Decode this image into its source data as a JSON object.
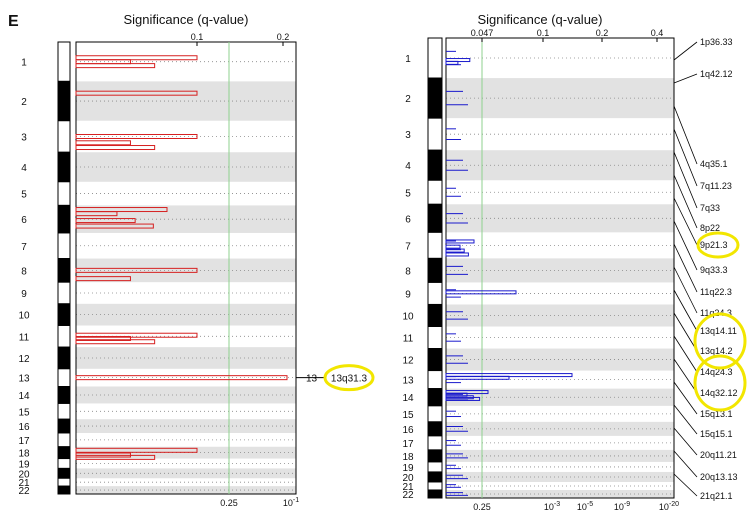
{
  "panel_label": "E",
  "chart_data": [
    {
      "type": "bar",
      "title": "Significance (q-value)",
      "orientation": "horizontal",
      "x_scale": "log q-value (reversed)",
      "top_ticks": [
        "0.1",
        "0.2"
      ],
      "bottom_ticks": [
        "0.25",
        "10",
        "-1"
      ],
      "threshold_q": 0.25,
      "chromosomes": [
        "1",
        "2",
        "3",
        "4",
        "5",
        "6",
        "7",
        "8",
        "9",
        "10",
        "11",
        "12",
        "13",
        "14",
        "15",
        "16",
        "17",
        "18",
        "19",
        "20",
        "21",
        "22"
      ],
      "chromosome_labels_right": [
        "13"
      ],
      "callouts": [
        "13q31.3"
      ],
      "bar_color": "#d62020",
      "peaks": [
        {
          "chromosome": "1",
          "q_value": 0.1
        },
        {
          "chromosome": "2",
          "q_value": 0.1
        },
        {
          "chromosome": "3",
          "q_value": 0.1
        },
        {
          "chromosome": "6",
          "q_value": 0.15
        },
        {
          "chromosome": "8",
          "q_value": 0.1
        },
        {
          "chromosome": "11",
          "q_value": 0.1
        },
        {
          "chromosome": "13",
          "q_value": 0.06
        },
        {
          "chromosome": "18",
          "q_value": 0.1
        }
      ]
    },
    {
      "type": "bar",
      "title": "Significance (q-value)",
      "orientation": "horizontal",
      "x_scale": "log q-value (reversed)",
      "top_ticks": [
        "0.047",
        "0.1",
        "0.2",
        "0.4"
      ],
      "bottom_ticks": [
        "0.25",
        "10",
        "-3",
        "10",
        "-5",
        "10",
        "-9",
        "10",
        "-20"
      ],
      "threshold_q": 0.25,
      "chromosomes": [
        "1",
        "2",
        "3",
        "4",
        "5",
        "6",
        "7",
        "8",
        "9",
        "10",
        "11",
        "12",
        "13",
        "14",
        "15",
        "16",
        "17",
        "18",
        "19",
        "20",
        "21",
        "22"
      ],
      "bar_color": "#1a1acc",
      "cytoband_labels": [
        "1p36.33",
        "1q42.12",
        "4q35.1",
        "7q11.23",
        "7q33",
        "8p22",
        "9p21.3",
        "9q33.3",
        "11q22.3",
        "11q24.3",
        "13q14.11",
        "13q14.2",
        "14q24.3",
        "14q32.12",
        "15q13.1",
        "15q15.1",
        "20q11.21",
        "20q13.13",
        "21q21.1"
      ],
      "highlighted": [
        "9p21.3",
        "13q14.11",
        "13q14.2",
        "14q24.3",
        "14q32.12"
      ],
      "peaks": [
        {
          "chromosome": "1",
          "q_value": 0.02
        },
        {
          "chromosome": "7",
          "q_value": 0.01
        },
        {
          "chromosome": "9",
          "q_value": 1e-05
        },
        {
          "chromosome": "13",
          "q_value": 1e-09
        },
        {
          "chromosome": "14",
          "q_value": 0.001
        }
      ]
    }
  ]
}
